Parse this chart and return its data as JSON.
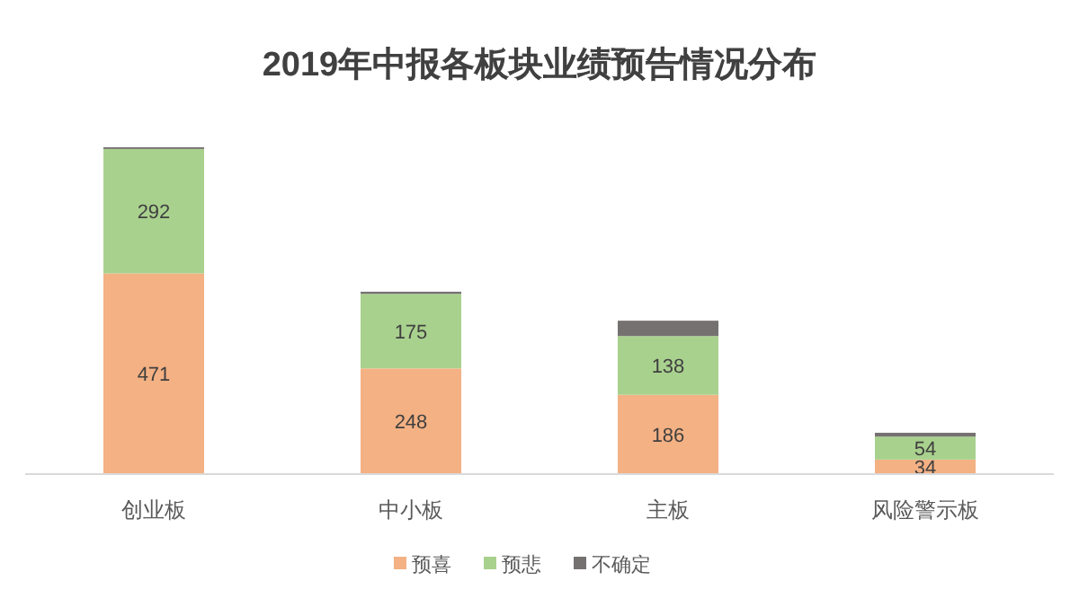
{
  "chart_data": {
    "type": "bar",
    "title": "2019年中报各板块业绩预告情况分布",
    "stacked": true,
    "categories": [
      "创业板",
      "中小板",
      "主板",
      "风险警示板"
    ],
    "series": [
      {
        "name": "预喜",
        "color": "#f4b183",
        "values": [
          471,
          248,
          186,
          34
        ],
        "value_labels": [
          "471",
          "248",
          "186",
          "34"
        ]
      },
      {
        "name": "预悲",
        "color": "#a9d18e",
        "values": [
          292,
          175,
          138,
          54
        ],
        "value_labels": [
          "292",
          "175",
          "138",
          "54"
        ]
      },
      {
        "name": "不确定",
        "color": "#767171",
        "values": [
          4,
          5,
          36,
          9
        ]
      }
    ],
    "legend": "bottom"
  }
}
